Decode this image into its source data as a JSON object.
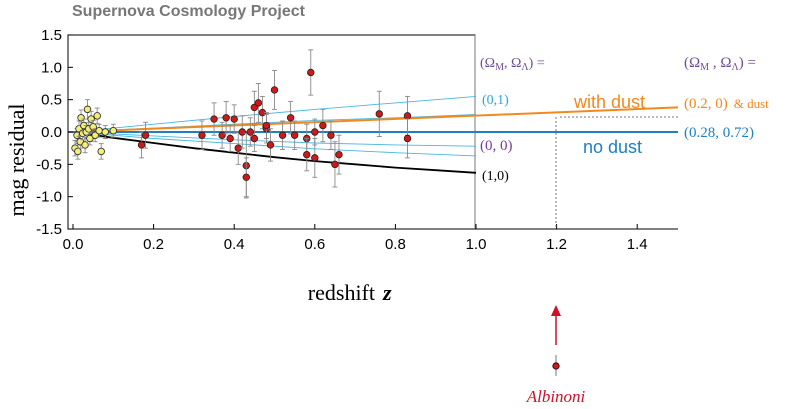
{
  "header": {
    "project": "Supernova Cosmology Project"
  },
  "chart_data": {
    "type": "scatter",
    "title": "Supernova Cosmology Project",
    "xlabel": "redshift",
    "xlabel_var": "z",
    "ylabel": "mag residual",
    "xlim": [
      0,
      1.5
    ],
    "ylim": [
      -1.5,
      1.5
    ],
    "panel_split_x": 1.0,
    "x_ticks": [
      "0.0",
      "0.2",
      "0.4",
      "0.6",
      "0.8",
      "1.0",
      "1.2",
      "1.4"
    ],
    "y_ticks": [
      "1.5",
      "1.0",
      "0.5",
      "0.0",
      "-0.5",
      "-1.0",
      "-1.5"
    ],
    "grid": false,
    "colors": {
      "low_z": "#f2ec7a",
      "high_z": "#d01818",
      "with_dust": "#f08a20",
      "no_dust": "#1f7fc4",
      "thin_models": "#4ab6e0",
      "closed": "#000000",
      "arrow": "#d0102a"
    },
    "series": [
      {
        "name": "low-z",
        "points": [
          {
            "x": 0.005,
            "y": -0.25,
            "err": 0.12
          },
          {
            "x": 0.01,
            "y": -0.05,
            "err": 0.1
          },
          {
            "x": 0.012,
            "y": -0.3,
            "err": 0.12
          },
          {
            "x": 0.015,
            "y": 0.05,
            "err": 0.12
          },
          {
            "x": 0.018,
            "y": -0.15,
            "err": 0.1
          },
          {
            "x": 0.02,
            "y": 0.22,
            "err": 0.12
          },
          {
            "x": 0.024,
            "y": -0.02,
            "err": 0.1
          },
          {
            "x": 0.027,
            "y": 0.1,
            "err": 0.1
          },
          {
            "x": 0.03,
            "y": -0.2,
            "err": 0.12
          },
          {
            "x": 0.033,
            "y": 0.0,
            "err": 0.1
          },
          {
            "x": 0.036,
            "y": 0.35,
            "err": 0.15
          },
          {
            "x": 0.039,
            "y": 0.05,
            "err": 0.1
          },
          {
            "x": 0.042,
            "y": -0.1,
            "err": 0.1
          },
          {
            "x": 0.045,
            "y": 0.2,
            "err": 0.12
          },
          {
            "x": 0.05,
            "y": 0.08,
            "err": 0.1
          },
          {
            "x": 0.055,
            "y": -0.05,
            "err": 0.1
          },
          {
            "x": 0.06,
            "y": 0.25,
            "err": 0.12
          },
          {
            "x": 0.065,
            "y": 0.02,
            "err": 0.1
          },
          {
            "x": 0.07,
            "y": -0.3,
            "err": 0.12
          },
          {
            "x": 0.08,
            "y": 0.0,
            "err": 0.1
          },
          {
            "x": 0.1,
            "y": 0.02,
            "err": 0.1
          }
        ]
      },
      {
        "name": "high-z",
        "points": [
          {
            "x": 0.17,
            "y": -0.2,
            "err": 0.2
          },
          {
            "x": 0.18,
            "y": -0.05,
            "err": 0.2
          },
          {
            "x": 0.32,
            "y": -0.05,
            "err": 0.22
          },
          {
            "x": 0.35,
            "y": 0.2,
            "err": 0.25
          },
          {
            "x": 0.37,
            "y": -0.05,
            "err": 0.2
          },
          {
            "x": 0.38,
            "y": 0.22,
            "err": 0.25
          },
          {
            "x": 0.39,
            "y": -0.1,
            "err": 0.2
          },
          {
            "x": 0.4,
            "y": 0.2,
            "err": 0.22
          },
          {
            "x": 0.41,
            "y": -0.25,
            "err": 0.25
          },
          {
            "x": 0.42,
            "y": 0.0,
            "err": 0.25
          },
          {
            "x": 0.43,
            "y": -0.52,
            "err": 0.5
          },
          {
            "x": 0.43,
            "y": -0.7,
            "err": 0.3
          },
          {
            "x": 0.44,
            "y": 0.0,
            "err": 0.22
          },
          {
            "x": 0.45,
            "y": -0.1,
            "err": 0.2
          },
          {
            "x": 0.45,
            "y": 0.38,
            "err": 0.25
          },
          {
            "x": 0.46,
            "y": 0.45,
            "err": 0.3
          },
          {
            "x": 0.47,
            "y": 0.3,
            "err": 0.25
          },
          {
            "x": 0.48,
            "y": 0.05,
            "err": 0.22
          },
          {
            "x": 0.48,
            "y": 0.1,
            "err": 0.2
          },
          {
            "x": 0.49,
            "y": -0.2,
            "err": 0.25
          },
          {
            "x": 0.5,
            "y": 0.65,
            "err": 0.3
          },
          {
            "x": 0.52,
            "y": -0.05,
            "err": 0.22
          },
          {
            "x": 0.54,
            "y": 0.22,
            "err": 0.25
          },
          {
            "x": 0.55,
            "y": -0.05,
            "err": 0.22
          },
          {
            "x": 0.58,
            "y": -0.1,
            "err": 0.22
          },
          {
            "x": 0.58,
            "y": -0.35,
            "err": 0.25
          },
          {
            "x": 0.59,
            "y": 0.92,
            "err": 0.35
          },
          {
            "x": 0.6,
            "y": -0.4,
            "err": 0.3
          },
          {
            "x": 0.6,
            "y": 0.0,
            "err": 0.2
          },
          {
            "x": 0.62,
            "y": 0.1,
            "err": 0.25
          },
          {
            "x": 0.64,
            "y": -0.05,
            "err": 0.22
          },
          {
            "x": 0.65,
            "y": -0.5,
            "err": 0.35
          },
          {
            "x": 0.66,
            "y": -0.35,
            "err": 0.3
          },
          {
            "x": 0.76,
            "y": 0.28,
            "err": 0.35
          },
          {
            "x": 0.83,
            "y": 0.25,
            "err": 0.3
          },
          {
            "x": 0.83,
            "y": -0.1,
            "err": 0.3
          }
        ]
      }
    ],
    "model_curves": [
      {
        "label": "(1,0)",
        "color": "#000000",
        "width": 1.8,
        "x": [
          0,
          0.1,
          0.2,
          0.3,
          0.4,
          0.5,
          0.6,
          0.7,
          0.8,
          0.9,
          1.0
        ],
        "y": [
          0,
          -0.09,
          -0.17,
          -0.25,
          -0.32,
          -0.39,
          -0.45,
          -0.5,
          -0.55,
          -0.59,
          -0.63
        ]
      },
      {
        "label": "(0,0)",
        "color": "#4ab6e0",
        "width": 0.9,
        "x": [
          0,
          0.2,
          0.4,
          0.6,
          0.8,
          1.0
        ],
        "y": [
          0,
          -0.1,
          -0.18,
          -0.26,
          -0.32,
          -0.37
        ]
      },
      {
        "label": "(0,1)",
        "color": "#4ab6e0",
        "width": 0.9,
        "x": [
          0,
          0.2,
          0.4,
          0.6,
          0.8,
          1.0
        ],
        "y": [
          0,
          0.12,
          0.24,
          0.35,
          0.45,
          0.55
        ]
      },
      {
        "label": "",
        "color": "#4ab6e0",
        "width": 0.9,
        "x": [
          0,
          0.2,
          0.4,
          0.6,
          0.8,
          1.0
        ],
        "y": [
          0,
          0.06,
          0.12,
          0.18,
          0.22,
          0.27
        ]
      },
      {
        "label": "",
        "color": "#4ab6e0",
        "width": 0.9,
        "x": [
          0,
          0.2,
          0.4,
          0.6,
          0.8,
          1.0
        ],
        "y": [
          0,
          -0.06,
          -0.12,
          -0.17,
          -0.2,
          -0.22
        ]
      }
    ],
    "dust_lines": [
      {
        "label": "with dust",
        "color": "#f08a20",
        "x": [
          0,
          1.5
        ],
        "y": [
          0,
          0.38
        ]
      },
      {
        "label": "no dust",
        "color": "#1f7fc4",
        "x": [
          0,
          1.5
        ],
        "y": [
          0,
          0
        ]
      }
    ],
    "annotations": {
      "omega_header_left": "(Ω_M , Ω_Λ) =",
      "omega_header_right": "(Ω_M , Ω_Λ) =",
      "model_01": "(0,1)",
      "model_00": "(0, 0)",
      "model_10": "(1,0)",
      "with_dust": "with dust",
      "no_dust": "no dust",
      "dust_params": "(0.2,  0)",
      "dust_suffix": "& dust",
      "nodust_params": "(0.28,  0.72)",
      "albinoni": "Albinoni"
    },
    "albinoni_point": {
      "x": 1.2,
      "y": -2.7
    }
  }
}
